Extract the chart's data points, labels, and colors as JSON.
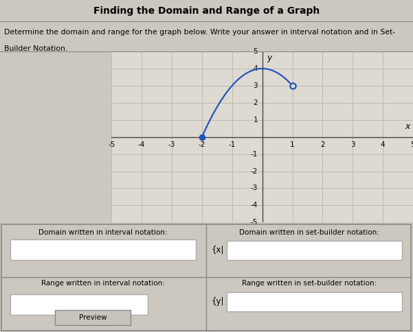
{
  "title": "Finding the Domain and Range of a Graph",
  "subtitle1": "Determine the domain and range for the graph below. Write your answer in interval notation and in Set-",
  "subtitle2": "Builder Notation.",
  "bg_color": "#ccc8c0",
  "graph_bg": "#dedad2",
  "grid_color": "#b8b4ac",
  "curve_color": "#2255bb",
  "xmin": -5,
  "xmax": 5,
  "ymin": -5,
  "ymax": 5,
  "x_label": "x",
  "y_label": "y",
  "closed_point": [
    -2,
    0
  ],
  "open_point": [
    1,
    3
  ],
  "peak_point": [
    0,
    4
  ],
  "form_labels": [
    "Domain written in interval notation:",
    "Domain written in set-builder notation:",
    "Range written in interval notation:",
    "Range written in set-builder notation:"
  ],
  "set_builder_x_prefix": "{x|",
  "set_builder_y_prefix": "{y|",
  "preview_label": "Preview",
  "title_bg": "#e8e4dc",
  "form_bg": "#ccc8c0",
  "box_bg": "white",
  "divider_color": "#888880"
}
